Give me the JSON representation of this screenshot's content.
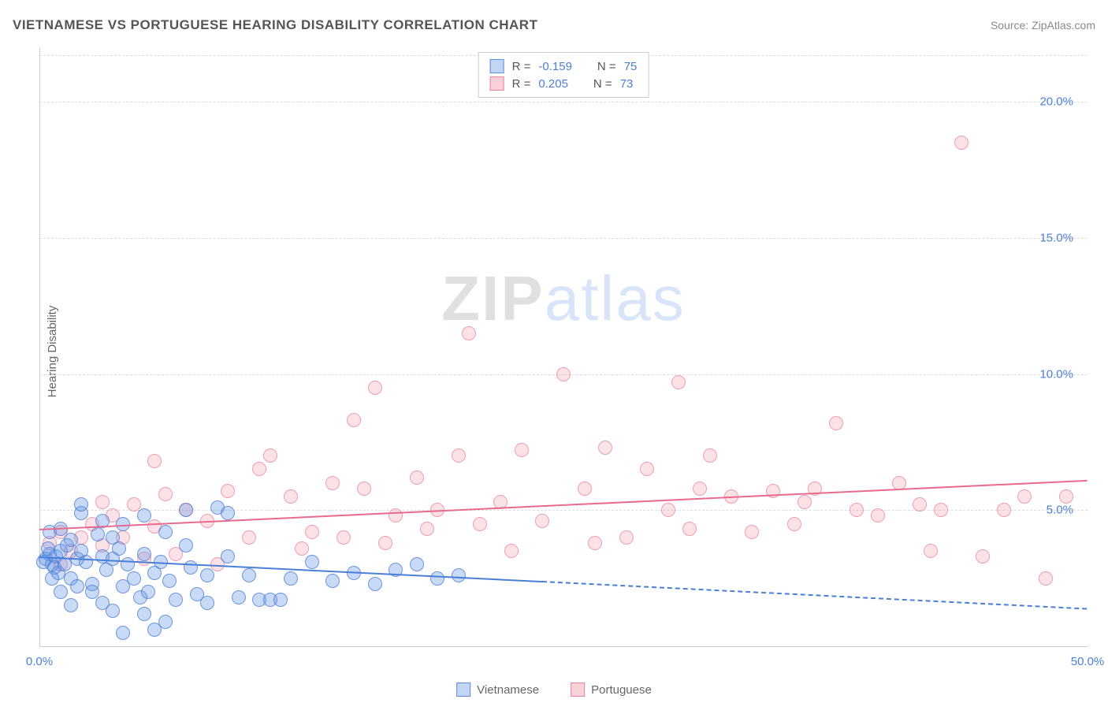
{
  "header": {
    "title": "VIETNAMESE VS PORTUGUESE HEARING DISABILITY CORRELATION CHART",
    "source": "Source: ZipAtlas.com"
  },
  "chart": {
    "type": "scatter",
    "y_axis_label": "Hearing Disability",
    "watermark": {
      "zip": "ZIP",
      "atlas": "atlas"
    },
    "background_color": "#ffffff",
    "grid_color": "#dddddd",
    "axis_color": "#cccccc",
    "tick_color": "#4a7fd8",
    "x_range": [
      0,
      50
    ],
    "y_range": [
      0,
      22
    ],
    "y_ticks": [
      {
        "value": 5,
        "label": "5.0%"
      },
      {
        "value": 10,
        "label": "10.0%"
      },
      {
        "value": 15,
        "label": "15.0%"
      },
      {
        "value": 20,
        "label": "20.0%"
      }
    ],
    "x_ticks": [
      {
        "value": 0,
        "label": "0.0%"
      },
      {
        "value": 50,
        "label": "50.0%"
      }
    ],
    "point_radius": 9,
    "series": {
      "vietnamese": {
        "label": "Vietnamese",
        "color_fill": "rgba(100,150,230,0.35)",
        "color_stroke": "rgba(70,120,210,0.7)",
        "R": "-0.159",
        "N": "75",
        "trend": {
          "x0": 0,
          "y0": 3.3,
          "x1": 24,
          "y1": 2.4,
          "x_solid_end": 24,
          "x_dash_end": 50,
          "y_dash_end": 1.4
        },
        "points": [
          [
            0.3,
            3.2
          ],
          [
            0.5,
            3.4
          ],
          [
            0.6,
            3.0
          ],
          [
            0.4,
            3.6
          ],
          [
            0.8,
            3.3
          ],
          [
            0.7,
            2.9
          ],
          [
            1.0,
            3.5
          ],
          [
            0.2,
            3.1
          ],
          [
            0.9,
            2.7
          ],
          [
            1.2,
            3.0
          ],
          [
            0.5,
            4.2
          ],
          [
            1.5,
            2.5
          ],
          [
            1.0,
            4.3
          ],
          [
            1.8,
            3.2
          ],
          [
            1.3,
            3.7
          ],
          [
            2.0,
            4.9
          ],
          [
            2.2,
            3.1
          ],
          [
            1.5,
            3.9
          ],
          [
            2.5,
            2.3
          ],
          [
            2.0,
            3.5
          ],
          [
            2.8,
            4.1
          ],
          [
            3.0,
            3.3
          ],
          [
            2.5,
            2.0
          ],
          [
            3.2,
            2.8
          ],
          [
            3.5,
            4.0
          ],
          [
            3.0,
            1.6
          ],
          [
            3.8,
            3.6
          ],
          [
            4.0,
            2.2
          ],
          [
            4.2,
            3.0
          ],
          [
            3.5,
            1.3
          ],
          [
            4.5,
            2.5
          ],
          [
            4.0,
            4.5
          ],
          [
            4.8,
            1.8
          ],
          [
            5.0,
            3.4
          ],
          [
            5.2,
            2.0
          ],
          [
            5.5,
            2.7
          ],
          [
            5.0,
            1.2
          ],
          [
            5.8,
            3.1
          ],
          [
            6.0,
            0.9
          ],
          [
            6.2,
            2.4
          ],
          [
            6.5,
            1.7
          ],
          [
            5.5,
            0.6
          ],
          [
            7.0,
            5.0
          ],
          [
            7.2,
            2.9
          ],
          [
            7.5,
            1.9
          ],
          [
            8.0,
            2.6
          ],
          [
            4.0,
            0.5
          ],
          [
            8.5,
            5.1
          ],
          [
            9.0,
            3.3
          ],
          [
            9.5,
            1.8
          ],
          [
            10.0,
            2.6
          ],
          [
            10.5,
            1.7
          ],
          [
            11.0,
            1.7
          ],
          [
            11.5,
            1.7
          ],
          [
            9.0,
            4.9
          ],
          [
            12.0,
            2.5
          ],
          [
            13.0,
            3.1
          ],
          [
            14.0,
            2.4
          ],
          [
            15.0,
            2.7
          ],
          [
            16.0,
            2.3
          ],
          [
            17.0,
            2.8
          ],
          [
            18.0,
            3.0
          ],
          [
            19.0,
            2.5
          ],
          [
            20.0,
            2.6
          ],
          [
            5.0,
            4.8
          ],
          [
            6.0,
            4.2
          ],
          [
            3.0,
            4.6
          ],
          [
            2.0,
            5.2
          ],
          [
            1.0,
            2.0
          ],
          [
            1.5,
            1.5
          ],
          [
            8.0,
            1.6
          ],
          [
            7.0,
            3.7
          ],
          [
            0.6,
            2.5
          ],
          [
            1.8,
            2.2
          ],
          [
            3.5,
            3.2
          ]
        ]
      },
      "portuguese": {
        "label": "Portuguese",
        "color_fill": "rgba(240,140,160,0.25)",
        "color_stroke": "rgba(230,110,140,0.6)",
        "R": "0.205",
        "N": "73",
        "trend": {
          "x0": 0,
          "y0": 4.3,
          "x1": 50,
          "y1": 6.1
        },
        "points": [
          [
            0.5,
            3.8
          ],
          [
            1.0,
            4.2
          ],
          [
            1.5,
            3.5
          ],
          [
            2.0,
            4.0
          ],
          [
            2.5,
            4.5
          ],
          [
            3.0,
            3.7
          ],
          [
            3.5,
            4.8
          ],
          [
            4.0,
            4.0
          ],
          [
            4.5,
            5.2
          ],
          [
            5.0,
            3.2
          ],
          [
            5.5,
            4.4
          ],
          [
            6.0,
            5.6
          ],
          [
            6.5,
            3.4
          ],
          [
            7.0,
            5.0
          ],
          [
            8.0,
            4.6
          ],
          [
            9.0,
            5.7
          ],
          [
            10.0,
            4.0
          ],
          [
            11.0,
            7.0
          ],
          [
            12.0,
            5.5
          ],
          [
            13.0,
            4.2
          ],
          [
            14.0,
            6.0
          ],
          [
            15.0,
            8.3
          ],
          [
            15.5,
            5.8
          ],
          [
            16.0,
            9.5
          ],
          [
            17.0,
            4.8
          ],
          [
            18.0,
            6.2
          ],
          [
            19.0,
            5.0
          ],
          [
            20.0,
            7.0
          ],
          [
            20.5,
            11.5
          ],
          [
            21.0,
            4.5
          ],
          [
            22.0,
            5.3
          ],
          [
            23.0,
            7.2
          ],
          [
            24.0,
            4.6
          ],
          [
            25.0,
            10.0
          ],
          [
            26.0,
            5.8
          ],
          [
            27.0,
            7.3
          ],
          [
            28.0,
            4.0
          ],
          [
            29.0,
            6.5
          ],
          [
            30.0,
            5.0
          ],
          [
            30.5,
            9.7
          ],
          [
            31.0,
            4.3
          ],
          [
            32.0,
            7.0
          ],
          [
            33.0,
            5.5
          ],
          [
            34.0,
            4.2
          ],
          [
            35.0,
            5.7
          ],
          [
            36.0,
            4.5
          ],
          [
            37.0,
            5.8
          ],
          [
            38.0,
            8.2
          ],
          [
            39.0,
            5.0
          ],
          [
            40.0,
            4.8
          ],
          [
            41.0,
            6.0
          ],
          [
            42.0,
            5.2
          ],
          [
            43.0,
            5.0
          ],
          [
            44.0,
            18.5
          ],
          [
            45.0,
            3.3
          ],
          [
            46.0,
            5.0
          ],
          [
            47.0,
            5.5
          ],
          [
            48.0,
            2.5
          ],
          [
            49.0,
            5.5
          ],
          [
            12.5,
            3.6
          ],
          [
            14.5,
            4.0
          ],
          [
            16.5,
            3.8
          ],
          [
            18.5,
            4.3
          ],
          [
            22.5,
            3.5
          ],
          [
            26.5,
            3.8
          ],
          [
            31.5,
            5.8
          ],
          [
            36.5,
            5.3
          ],
          [
            42.5,
            3.5
          ],
          [
            8.5,
            3.0
          ],
          [
            10.5,
            6.5
          ],
          [
            5.5,
            6.8
          ],
          [
            3.0,
            5.3
          ],
          [
            1.0,
            3.0
          ]
        ]
      }
    },
    "stats_legend_labels": {
      "R": "R =",
      "N": "N ="
    },
    "bottom_legend": [
      "Vietnamese",
      "Portuguese"
    ]
  }
}
